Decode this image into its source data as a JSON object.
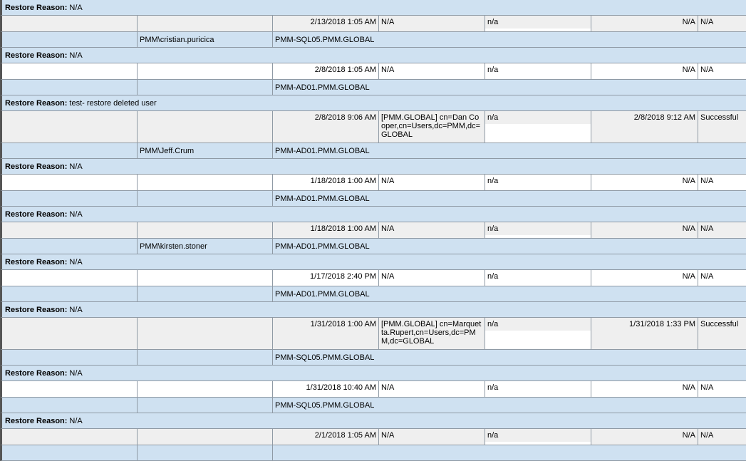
{
  "labels": {
    "restore_reason": "Restore Reason:"
  },
  "colors": {
    "group_bg": "#cfe1f1",
    "row_gray": "#efefef",
    "row_white": "#ffffff",
    "grid_line": "#8f9aa5"
  },
  "records": [
    {
      "reason": "N/A",
      "date": "2/13/2018 1:05 AM",
      "object": "N/A",
      "na": "n/a",
      "completed": "N/A",
      "status": "N/A",
      "user": "PMM\\cristian.puricica",
      "host": "PMM-SQL05.PMM.GLOBAL"
    },
    {
      "reason": "N/A",
      "date": "2/8/2018 1:05 AM",
      "object": "N/A",
      "na": "n/a",
      "completed": "N/A",
      "status": "N/A",
      "user": "",
      "host": "PMM-AD01.PMM.GLOBAL"
    },
    {
      "reason": "test- restore deleted user",
      "date": "2/8/2018 9:06 AM",
      "object": "[PMM.GLOBAL] cn=Dan Cooper,cn=Users,dc=PMM,dc=GLOBAL",
      "na": "n/a",
      "completed": "2/8/2018 9:12 AM",
      "status": "Successful",
      "user": "PMM\\Jeff.Crum",
      "host": "PMM-AD01.PMM.GLOBAL"
    },
    {
      "reason": "N/A",
      "date": "1/18/2018 1:00 AM",
      "object": "N/A",
      "na": "n/a",
      "completed": "N/A",
      "status": "N/A",
      "user": "",
      "host": "PMM-AD01.PMM.GLOBAL"
    },
    {
      "reason": "N/A",
      "date": "1/18/2018 1:00 AM",
      "object": "N/A",
      "na": "n/a",
      "completed": "N/A",
      "status": "N/A",
      "user": "PMM\\kirsten.stoner",
      "host": "PMM-AD01.PMM.GLOBAL"
    },
    {
      "reason": "N/A",
      "date": "1/17/2018 2:40 PM",
      "object": "N/A",
      "na": "n/a",
      "completed": "N/A",
      "status": "N/A",
      "user": "",
      "host": "PMM-AD01.PMM.GLOBAL"
    },
    {
      "reason": "N/A",
      "date": "1/31/2018 1:00 AM",
      "object": "[PMM.GLOBAL] cn=Marquetta.Rupert,cn=Users,dc=PMM,dc=GLOBAL",
      "na": "n/a",
      "completed": "1/31/2018 1:33 PM",
      "status": "Successful",
      "user": "",
      "host": "PMM-SQL05.PMM.GLOBAL"
    },
    {
      "reason": "N/A",
      "date": "1/31/2018 10:40 AM",
      "object": "N/A",
      "na": "n/a",
      "completed": "N/A",
      "status": "N/A",
      "user": "",
      "host": "PMM-SQL05.PMM.GLOBAL"
    },
    {
      "reason": "N/A",
      "date": "2/1/2018 1:05 AM",
      "object": "N/A",
      "na": "n/a",
      "completed": "N/A",
      "status": "N/A",
      "user": "",
      "host": ""
    }
  ]
}
